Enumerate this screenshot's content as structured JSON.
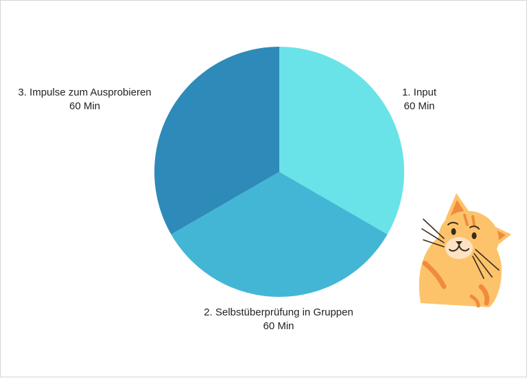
{
  "chart_data": {
    "type": "pie",
    "title": "",
    "slices": [
      {
        "label": "1. Input",
        "value": 60,
        "value_label": "60 Min",
        "color": "#6ae3e8"
      },
      {
        "label": "2. Selbstüberprüfung in Gruppen",
        "value": 60,
        "value_label": "60 Min",
        "color": "#43b6d6"
      },
      {
        "label": "3. Impulse zum Ausprobieren",
        "value": 60,
        "value_label": "60 Min",
        "color": "#2e8ab8"
      }
    ],
    "start_angle_deg": 0,
    "direction": "clockwise",
    "legend": "none"
  },
  "decoration": {
    "icon": "cat-illustration-icon",
    "colors": {
      "fur": "#fcc36b",
      "stripes": "#f28a3c",
      "muzzle": "#fde3c4",
      "outline": "#3b2a1e"
    }
  }
}
